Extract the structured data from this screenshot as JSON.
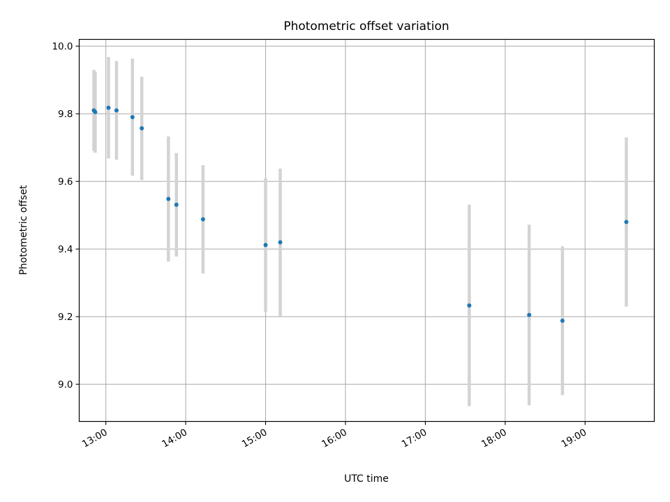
{
  "chart_data": {
    "type": "scatter",
    "title": "Photometric offset variation",
    "xlabel": "UTC time",
    "ylabel": "Photometric offset",
    "x_axis_type": "time",
    "xlim": [
      "12:40",
      "19:52"
    ],
    "ylim": [
      8.89,
      10.02
    ],
    "x_ticks": [
      "13:00",
      "14:00",
      "15:00",
      "16:00",
      "17:00",
      "18:00",
      "19:00"
    ],
    "y_ticks": [
      "9.0",
      "9.2",
      "9.4",
      "9.6",
      "9.8",
      "10.0"
    ],
    "grid": true,
    "legend": "none",
    "colors": {
      "points": "#1f77b4",
      "error_bars": "#d3d3d3",
      "grid": "#b0b0b0"
    },
    "points": [
      {
        "x": "12:51",
        "y": 9.81,
        "err": 0.12
      },
      {
        "x": "12:52",
        "y": 9.805,
        "err": 0.12
      },
      {
        "x": "13:02",
        "y": 9.818,
        "err": 0.15
      },
      {
        "x": "13:08",
        "y": 9.81,
        "err": 0.146
      },
      {
        "x": "13:20",
        "y": 9.79,
        "err": 0.173
      },
      {
        "x": "13:27",
        "y": 9.757,
        "err": 0.153
      },
      {
        "x": "13:47",
        "y": 9.548,
        "err": 0.185
      },
      {
        "x": "13:53",
        "y": 9.531,
        "err": 0.153
      },
      {
        "x": "14:13",
        "y": 9.488,
        "err": 0.16
      },
      {
        "x": "15:00",
        "y": 9.412,
        "err": 0.198
      },
      {
        "x": "15:11",
        "y": 9.42,
        "err": 0.218
      },
      {
        "x": "17:33",
        "y": 9.233,
        "err": 0.298
      },
      {
        "x": "18:18",
        "y": 9.205,
        "err": 0.267
      },
      {
        "x": "18:43",
        "y": 9.188,
        "err": 0.22
      },
      {
        "x": "19:31",
        "y": 9.48,
        "err": 0.25
      }
    ]
  }
}
